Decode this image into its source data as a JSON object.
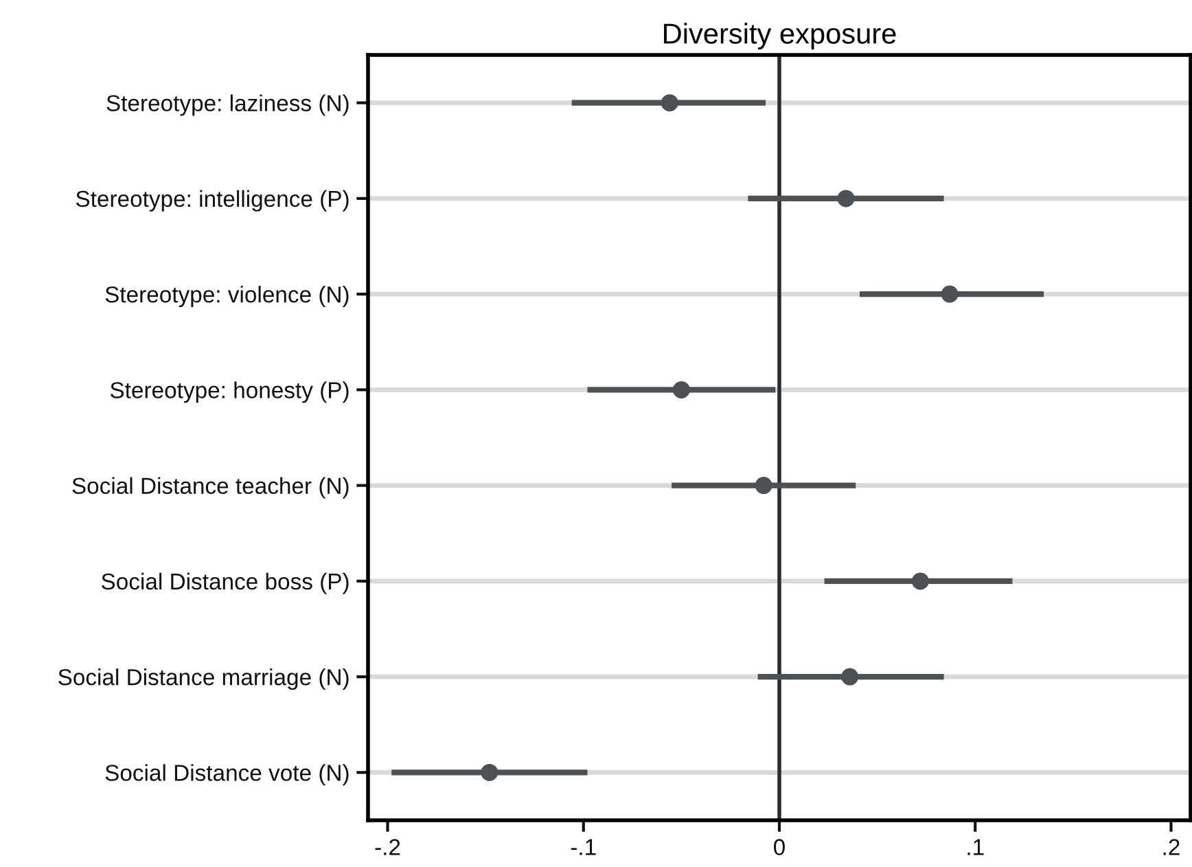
{
  "chart_data": {
    "type": "scatter",
    "orientation": "horizontal",
    "title": "Diversity exposure",
    "categories": [
      "Stereotype: laziness (N)",
      "Stereotype: intelligence (P)",
      "Stereotype: violence (N)",
      "Stereotype: honesty (P)",
      "Social Distance teacher (N)",
      "Social Distance boss (P)",
      "Social Distance marriage (N)",
      "Social Distance vote (N)"
    ],
    "series": [
      {
        "color": "#4d5154",
        "values": [
          -0.056,
          0.034,
          0.087,
          -0.05,
          -0.008,
          0.072,
          0.036,
          -0.148
        ],
        "errors": [
          [
            -0.106,
            -0.007
          ],
          [
            -0.016,
            0.084
          ],
          [
            0.041,
            0.135
          ],
          [
            -0.098,
            -0.002
          ],
          [
            -0.055,
            0.039
          ],
          [
            0.023,
            0.119
          ],
          [
            -0.011,
            0.084
          ],
          [
            -0.198,
            -0.098
          ]
        ]
      }
    ],
    "xlim": [
      -0.21,
      0.21
    ],
    "xticks": [
      {
        "value": -0.2,
        "label": "-.2"
      },
      {
        "value": -0.1,
        "label": "-.1"
      },
      0,
      {
        "value": 0.1,
        "label": ".1"
      },
      {
        "value": 0.2,
        "label": ".2"
      }
    ],
    "ref_lines": [
      {
        "axis": "x",
        "value": 0,
        "color": "#2b2e30"
      }
    ],
    "grid": "y",
    "marker": "circle"
  }
}
